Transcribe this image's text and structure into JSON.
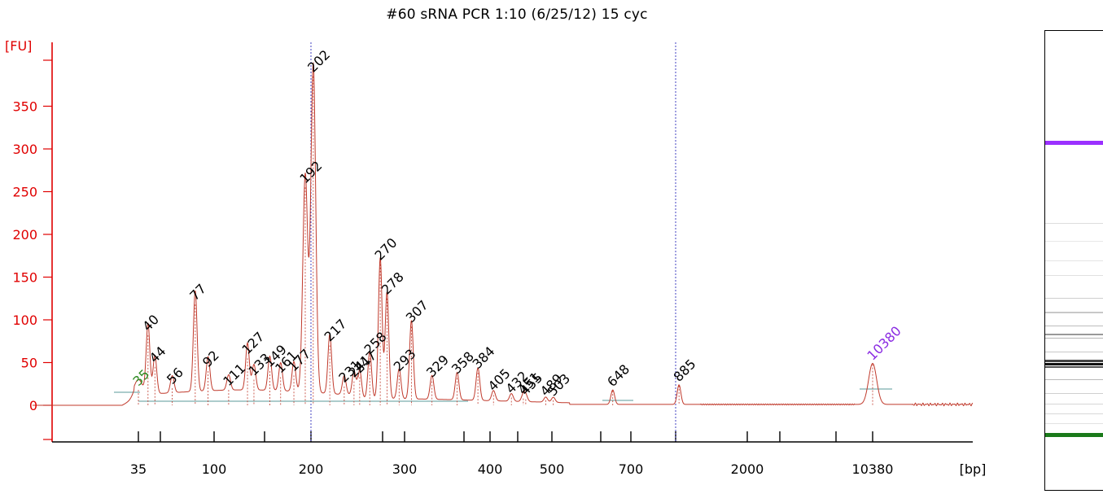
{
  "title": "#60 sRNA  PCR 1:10  (6/25/12)  15 cyc",
  "colors": {
    "axis": "#e00000",
    "trace": "#c0392b",
    "peak_label": "#000000",
    "lower_marker": "#2e8b22",
    "upper_marker": "#8a2be2",
    "ref_line": "#4040c0",
    "baseline": "#5a9a9a"
  },
  "chart_data": {
    "type": "line",
    "title": "#60 sRNA  PCR 1:10  (6/25/12)  15 cyc",
    "ylabel": "[FU]",
    "xlabel": "[bp]",
    "ylim": [
      -40,
      400
    ],
    "yticks": [
      "0",
      "50",
      "100",
      "150",
      "200",
      "250",
      "300",
      "350"
    ],
    "xticks": [
      "35",
      "100",
      "200",
      "300",
      "400",
      "500",
      "700",
      "2000",
      "10380"
    ],
    "grid": false,
    "reference_lines_bp": [
      200,
      850
    ],
    "peaks": [
      {
        "label": "35",
        "size_bp": 35,
        "fu": 18,
        "marker": "lower"
      },
      {
        "label": "40",
        "size_bp": 40,
        "fu": 82
      },
      {
        "label": "44",
        "size_bp": 44,
        "fu": 45
      },
      {
        "label": "56",
        "size_bp": 56,
        "fu": 20
      },
      {
        "label": "77",
        "size_bp": 77,
        "fu": 118
      },
      {
        "label": "92",
        "size_bp": 92,
        "fu": 40
      },
      {
        "label": "111",
        "size_bp": 111,
        "fu": 18
      },
      {
        "label": "127",
        "size_bp": 127,
        "fu": 55
      },
      {
        "label": "133",
        "size_bp": 133,
        "fu": 30
      },
      {
        "label": "149",
        "size_bp": 149,
        "fu": 40
      },
      {
        "label": "161",
        "size_bp": 161,
        "fu": 33
      },
      {
        "label": "177",
        "size_bp": 177,
        "fu": 35
      },
      {
        "label": "192",
        "size_bp": 192,
        "fu": 255
      },
      {
        "label": "202",
        "size_bp": 202,
        "fu": 385
      },
      {
        "label": "217",
        "size_bp": 217,
        "fu": 70
      },
      {
        "label": "231",
        "size_bp": 231,
        "fu": 22
      },
      {
        "label": "241",
        "size_bp": 241,
        "fu": 28
      },
      {
        "label": "247",
        "size_bp": 247,
        "fu": 33
      },
      {
        "label": "258",
        "size_bp": 258,
        "fu": 55
      },
      {
        "label": "270",
        "size_bp": 270,
        "fu": 165
      },
      {
        "label": "278",
        "size_bp": 278,
        "fu": 125
      },
      {
        "label": "293",
        "size_bp": 293,
        "fu": 35
      },
      {
        "label": "307",
        "size_bp": 307,
        "fu": 92
      },
      {
        "label": "329",
        "size_bp": 329,
        "fu": 28
      },
      {
        "label": "358",
        "size_bp": 358,
        "fu": 32
      },
      {
        "label": "384",
        "size_bp": 384,
        "fu": 38
      },
      {
        "label": "405",
        "size_bp": 405,
        "fu": 12
      },
      {
        "label": "432",
        "size_bp": 432,
        "fu": 9
      },
      {
        "label": "451",
        "size_bp": 451,
        "fu": 8
      },
      {
        "label": "455",
        "size_bp": 455,
        "fu": 7
      },
      {
        "label": "489",
        "size_bp": 489,
        "fu": 6
      },
      {
        "label": "503",
        "size_bp": 503,
        "fu": 6
      },
      {
        "label": "648",
        "size_bp": 648,
        "fu": 17
      },
      {
        "label": "885",
        "size_bp": 885,
        "fu": 23
      },
      {
        "label": "10380",
        "size_bp": 10380,
        "fu": 48,
        "marker": "upper"
      }
    ]
  },
  "gel_lane": {
    "upper_marker_color": "#9b30ff",
    "lower_marker_color": "#1a7a1a"
  }
}
